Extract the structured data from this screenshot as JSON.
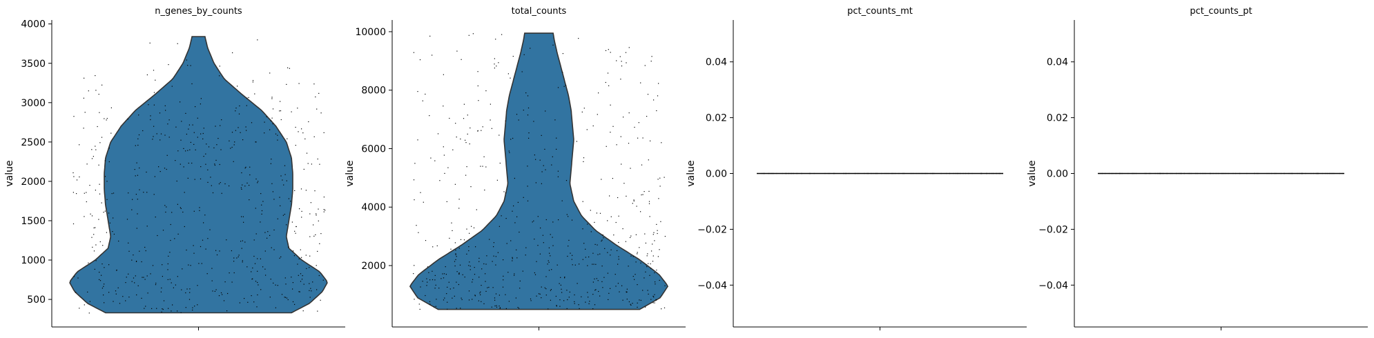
{
  "chart_data": [
    {
      "type": "violin",
      "title": "n_genes_by_counts",
      "xlabel": "",
      "ylabel": "value",
      "ylim": [
        150,
        4050
      ],
      "yticks": [
        500,
        1000,
        1500,
        2000,
        2500,
        3000,
        3500,
        4000
      ],
      "ytick_labels": [
        "500",
        "1000",
        "1500",
        "2000",
        "2500",
        "3000",
        "3500",
        "4000"
      ],
      "data_range": [
        330,
        3840
      ],
      "color": "#3274a1",
      "density_profile": [
        {
          "y": 330,
          "w": 0.72
        },
        {
          "y": 450,
          "w": 0.86
        },
        {
          "y": 600,
          "w": 0.96
        },
        {
          "y": 720,
          "w": 1.0
        },
        {
          "y": 850,
          "w": 0.94
        },
        {
          "y": 1000,
          "w": 0.8
        },
        {
          "y": 1150,
          "w": 0.7
        },
        {
          "y": 1300,
          "w": 0.68
        },
        {
          "y": 1500,
          "w": 0.7
        },
        {
          "y": 1700,
          "w": 0.72
        },
        {
          "y": 1900,
          "w": 0.73
        },
        {
          "y": 2100,
          "w": 0.73
        },
        {
          "y": 2300,
          "w": 0.72
        },
        {
          "y": 2500,
          "w": 0.68
        },
        {
          "y": 2700,
          "w": 0.6
        },
        {
          "y": 2900,
          "w": 0.49
        },
        {
          "y": 3100,
          "w": 0.34
        },
        {
          "y": 3300,
          "w": 0.2
        },
        {
          "y": 3500,
          "w": 0.12
        },
        {
          "y": 3700,
          "w": 0.07
        },
        {
          "y": 3840,
          "w": 0.05
        }
      ],
      "points_n": 600
    },
    {
      "type": "violin",
      "title": "total_counts",
      "xlabel": "",
      "ylabel": "value",
      "ylim": [
        -100,
        10400
      ],
      "yticks": [
        2000,
        4000,
        6000,
        8000,
        10000
      ],
      "ytick_labels": [
        "2000",
        "4000",
        "6000",
        "8000",
        "10000"
      ],
      "data_range": [
        500,
        9950
      ],
      "color": "#3274a1",
      "density_profile": [
        {
          "y": 500,
          "w": 0.78
        },
        {
          "y": 900,
          "w": 0.94
        },
        {
          "y": 1300,
          "w": 1.0
        },
        {
          "y": 1700,
          "w": 0.93
        },
        {
          "y": 2200,
          "w": 0.78
        },
        {
          "y": 2700,
          "w": 0.6
        },
        {
          "y": 3200,
          "w": 0.44
        },
        {
          "y": 3700,
          "w": 0.33
        },
        {
          "y": 4200,
          "w": 0.27
        },
        {
          "y": 4800,
          "w": 0.24
        },
        {
          "y": 5300,
          "w": 0.25
        },
        {
          "y": 5800,
          "w": 0.26
        },
        {
          "y": 6300,
          "w": 0.27
        },
        {
          "y": 6800,
          "w": 0.26
        },
        {
          "y": 7300,
          "w": 0.25
        },
        {
          "y": 7800,
          "w": 0.23
        },
        {
          "y": 8300,
          "w": 0.2
        },
        {
          "y": 8800,
          "w": 0.17
        },
        {
          "y": 9300,
          "w": 0.14
        },
        {
          "y": 9700,
          "w": 0.12
        },
        {
          "y": 9950,
          "w": 0.11
        }
      ],
      "points_n": 600
    },
    {
      "type": "violin",
      "title": "pct_counts_mt",
      "xlabel": "",
      "ylabel": "value",
      "ylim": [
        -0.055,
        0.055
      ],
      "yticks": [
        -0.04,
        -0.02,
        0.0,
        0.02,
        0.04
      ],
      "ytick_labels": [
        "−0.04",
        "−0.02",
        "0.00",
        "0.02",
        "0.04"
      ],
      "constant_value": 0.0,
      "points_n": 600
    },
    {
      "type": "violin",
      "title": "pct_counts_pt",
      "xlabel": "",
      "ylabel": "value",
      "ylim": [
        -0.055,
        0.055
      ],
      "yticks": [
        -0.04,
        -0.02,
        0.0,
        0.02,
        0.04
      ],
      "ytick_labels": [
        "−0.04",
        "−0.02",
        "0.00",
        "0.02",
        "0.04"
      ],
      "constant_value": 0.0,
      "points_n": 600
    }
  ]
}
